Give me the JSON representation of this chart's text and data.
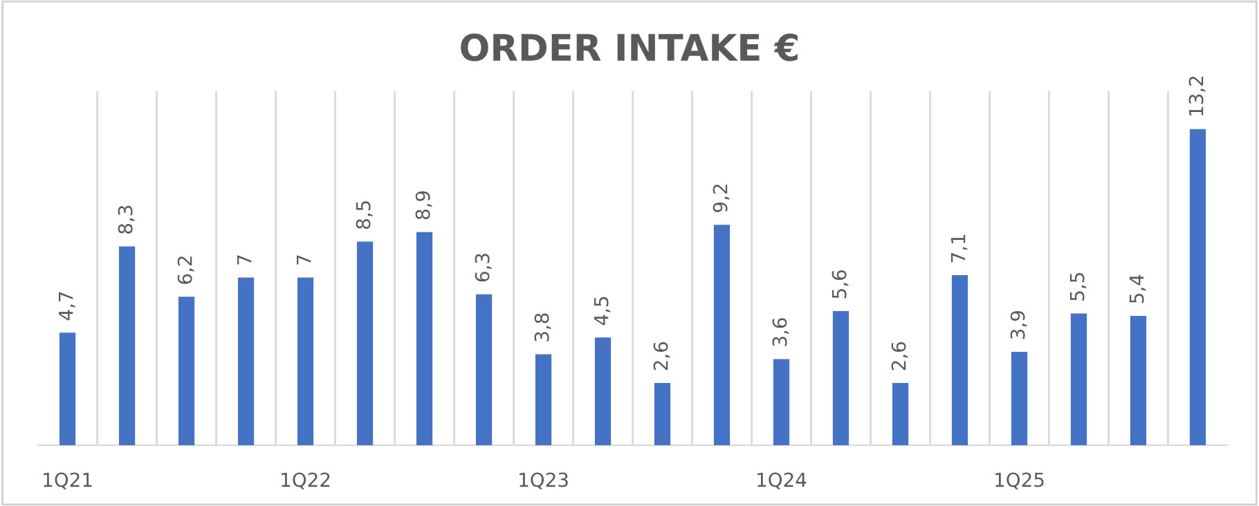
{
  "chart_data": {
    "type": "bar",
    "title": "ORDER INTAKE €",
    "categories": [
      "1Q21",
      null,
      null,
      null,
      "1Q22",
      null,
      null,
      null,
      "1Q23",
      null,
      null,
      null,
      "1Q24",
      null,
      null,
      null,
      "1Q25",
      null,
      null,
      null
    ],
    "values": [
      4.7,
      8.3,
      6.2,
      7,
      7,
      8.5,
      8.9,
      6.3,
      3.8,
      4.5,
      2.6,
      9.2,
      3.6,
      5.6,
      2.6,
      7.1,
      3.9,
      5.5,
      5.4,
      13.2
    ],
    "value_labels": [
      "4,7",
      "8,3",
      "6,2",
      "7",
      "7",
      "8,5",
      "8,9",
      "6,3",
      "3,8",
      "4,5",
      "2,6",
      "9,2",
      "3,6",
      "5,6",
      "2,6",
      "7,1",
      "3,9",
      "5,5",
      "5,4",
      "13,2"
    ],
    "color": "#4472c4",
    "grid": "x",
    "legend": false
  }
}
